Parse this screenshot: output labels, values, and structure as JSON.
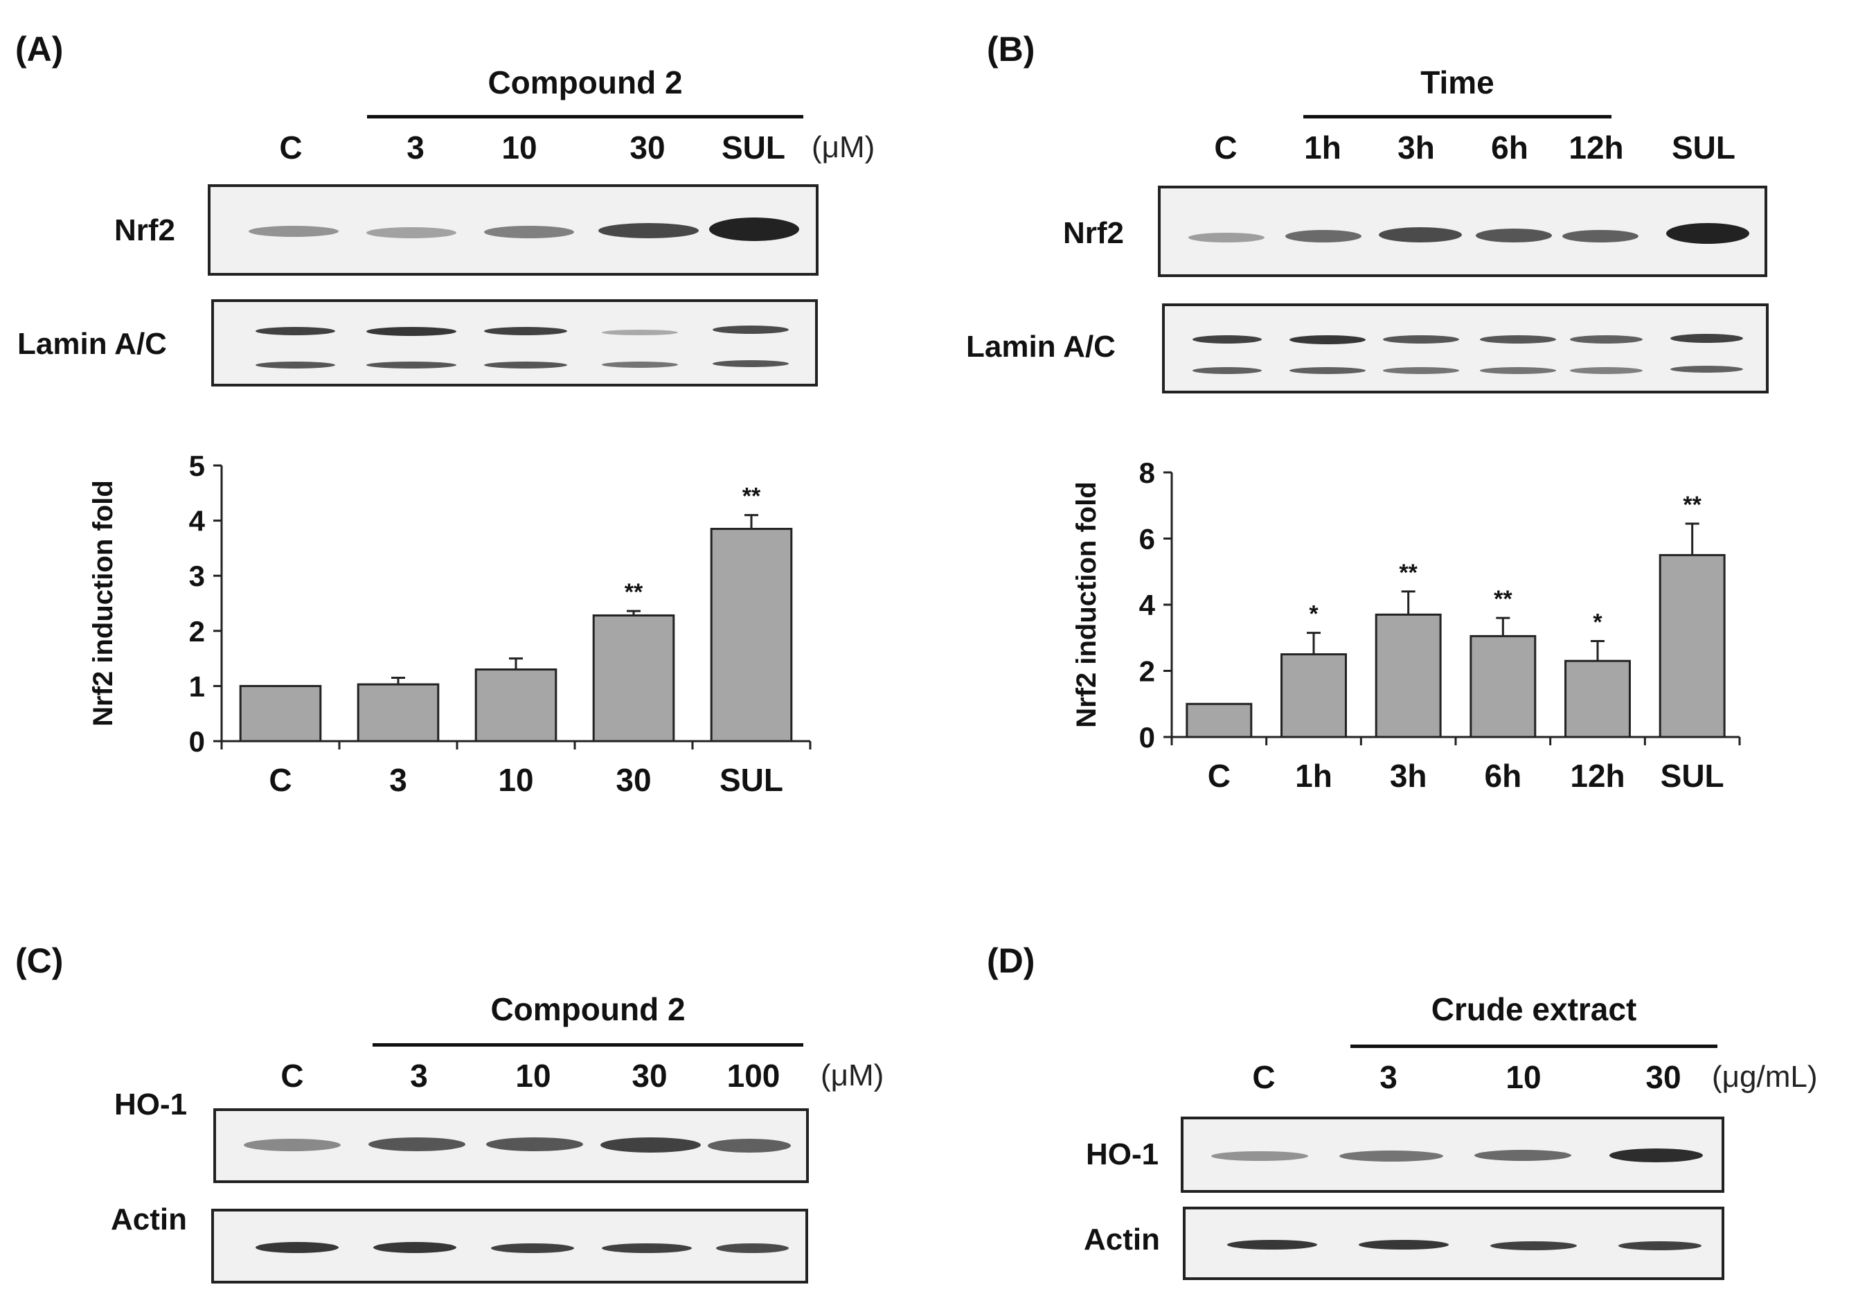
{
  "panels": {
    "A": {
      "label": "(A)",
      "group_header": "Compound 2",
      "lanes": [
        "C",
        "3",
        "10",
        "30",
        "SUL"
      ],
      "unit": "(μM)",
      "blots": [
        {
          "name": "Nrf2",
          "intensity": [
            0.35,
            0.3,
            0.45,
            0.75,
            1.0
          ]
        },
        {
          "name": "Lamin A/C",
          "intensity": [
            0.8,
            0.85,
            0.8,
            0.4,
            0.75
          ]
        }
      ]
    },
    "B": {
      "label": "(B)",
      "group_header": "Time",
      "lanes": [
        "C",
        "1h",
        "3h",
        "6h",
        "12h",
        "SUL"
      ],
      "blots": [
        {
          "name": "Nrf2",
          "intensity": [
            0.3,
            0.55,
            0.75,
            0.7,
            0.6,
            1.0
          ]
        },
        {
          "name": "Lamin A/C",
          "intensity": [
            0.8,
            0.85,
            0.7,
            0.7,
            0.65,
            0.8
          ]
        }
      ]
    },
    "C": {
      "label": "(C)",
      "group_header": "Compound 2",
      "lanes": [
        "C",
        "3",
        "10",
        "30",
        "100"
      ],
      "unit": "(μM)",
      "blots": [
        {
          "name": "HO-1",
          "intensity": [
            0.45,
            0.7,
            0.7,
            0.8,
            0.65
          ]
        },
        {
          "name": "Actin",
          "intensity": [
            0.85,
            0.85,
            0.8,
            0.8,
            0.75
          ]
        }
      ]
    },
    "D": {
      "label": "(D)",
      "group_header": "Crude extract",
      "lanes": [
        "C",
        "3",
        "10",
        "30"
      ],
      "unit": "(μg/mL)",
      "blots": [
        {
          "name": "HO-1",
          "intensity": [
            0.35,
            0.5,
            0.55,
            0.95
          ]
        },
        {
          "name": "Actin",
          "intensity": [
            0.85,
            0.85,
            0.8,
            0.8
          ]
        }
      ]
    }
  },
  "chart_data": [
    {
      "type": "bar",
      "panel": "A",
      "categories": [
        "C",
        "3",
        "10",
        "30",
        "SUL"
      ],
      "values": [
        1.0,
        1.03,
        1.3,
        2.28,
        3.85
      ],
      "errors": [
        0,
        0.12,
        0.2,
        0.08,
        0.25
      ],
      "significance": [
        "",
        "",
        "",
        "**",
        "**"
      ],
      "ylabel": "Nrf2 induction fold",
      "xlabel": "",
      "ylim": [
        0,
        5
      ],
      "yticks": [
        "0",
        "1",
        "2",
        "3",
        "4",
        "5"
      ],
      "bar_color": "#a6a6a6"
    },
    {
      "type": "bar",
      "panel": "B",
      "categories": [
        "C",
        "1h",
        "3h",
        "6h",
        "12h",
        "SUL"
      ],
      "values": [
        1.0,
        2.5,
        3.7,
        3.05,
        2.3,
        5.5
      ],
      "errors": [
        0,
        0.65,
        0.7,
        0.55,
        0.6,
        0.95
      ],
      "significance": [
        "",
        "*",
        "**",
        "**",
        "*",
        "**"
      ],
      "ylabel": "Nrf2 induction fold",
      "xlabel": "",
      "ylim": [
        0,
        8
      ],
      "yticks": [
        "0",
        "2",
        "4",
        "6",
        "8"
      ],
      "bar_color": "#a6a6a6"
    }
  ]
}
